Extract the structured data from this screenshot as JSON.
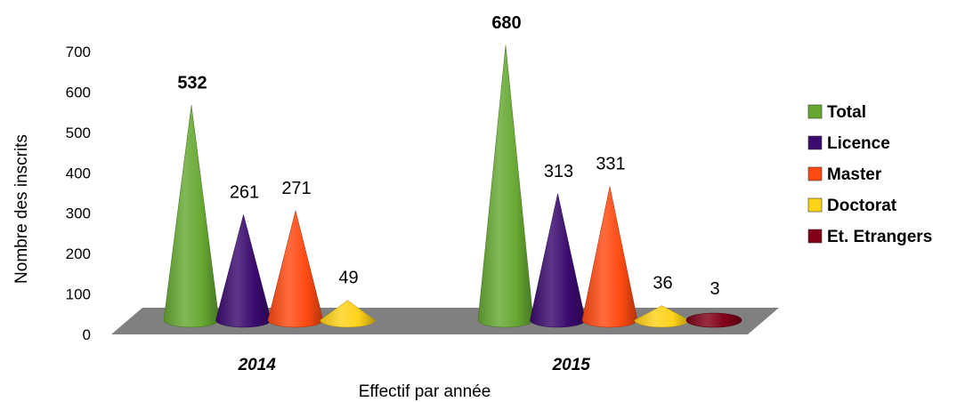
{
  "chart_data": {
    "type": "bar",
    "subtype": "3d-cone",
    "categories": [
      "2014",
      "2015"
    ],
    "series": [
      {
        "name": "Total",
        "color": "#66a832",
        "values": [
          532,
          680
        ]
      },
      {
        "name": "Licence",
        "color": "#3a0a6e",
        "values": [
          261,
          313
        ]
      },
      {
        "name": "Master",
        "color": "#ff4a12",
        "values": [
          271,
          331
        ]
      },
      {
        "name": "Doctorat",
        "color": "#ffd21a",
        "values": [
          49,
          36
        ]
      },
      {
        "name": "Et. Etrangers",
        "color": "#800018",
        "values": [
          null,
          3
        ]
      }
    ],
    "data_labels": [
      {
        "text": "532",
        "bold": true
      },
      {
        "text": "261",
        "bold": false
      },
      {
        "text": "271",
        "bold": false
      },
      {
        "text": "49",
        "bold": false
      },
      {
        "text": "680",
        "bold": true
      },
      {
        "text": "313",
        "bold": false
      },
      {
        "text": "331",
        "bold": false
      },
      {
        "text": "36",
        "bold": false
      },
      {
        "text": "3",
        "bold": false
      }
    ],
    "xlabel": "Effectif par année",
    "ylabel": "Nombre des inscrits",
    "ylim": [
      0,
      700
    ],
    "yticks": [
      "0",
      "100",
      "200",
      "300",
      "400",
      "500",
      "600",
      "700"
    ],
    "grid": false,
    "floor_color": "#808080",
    "legend_position": "right"
  }
}
